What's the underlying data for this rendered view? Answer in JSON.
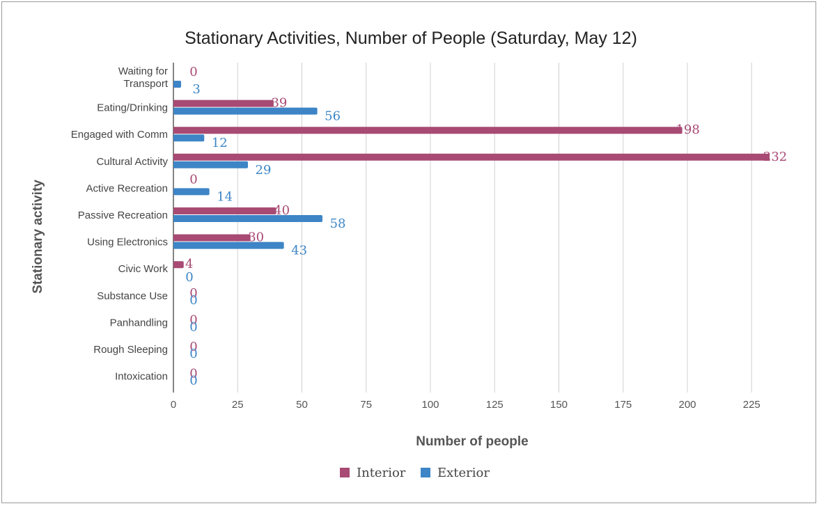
{
  "chart_data": {
    "type": "bar",
    "orientation": "horizontal",
    "title": "Stationary Activities, Number of People (Saturday, May 12)",
    "xlabel": "Number of people",
    "ylabel": "Stationary activity",
    "xlim": [
      0,
      250
    ],
    "xticks": [
      "0",
      "25",
      "50",
      "75",
      "100",
      "125",
      "150",
      "175",
      "200",
      "225"
    ],
    "categories": [
      [
        "Waiting for",
        "Transport"
      ],
      [
        "Eating/Drinking"
      ],
      [
        "Engaged with Comm"
      ],
      [
        "Cultural Activity"
      ],
      [
        "Active Recreation"
      ],
      [
        "Passive Recreation"
      ],
      [
        "Using Electronics"
      ],
      [
        "Civic Work"
      ],
      [
        "Substance Use"
      ],
      [
        "Panhandling"
      ],
      [
        "Rough Sleeping"
      ],
      [
        "Intoxication"
      ]
    ],
    "series": [
      {
        "name": "Interior",
        "color": "#a84a74",
        "values": [
          0,
          39,
          198,
          232,
          0,
          40,
          30,
          4,
          0,
          0,
          0,
          0
        ]
      },
      {
        "name": "Exterior",
        "color": "#3d85c6",
        "values": [
          3,
          56,
          12,
          29,
          14,
          58,
          43,
          0,
          0,
          0,
          0,
          0
        ]
      }
    ],
    "grid": true,
    "legend": "bottom"
  }
}
